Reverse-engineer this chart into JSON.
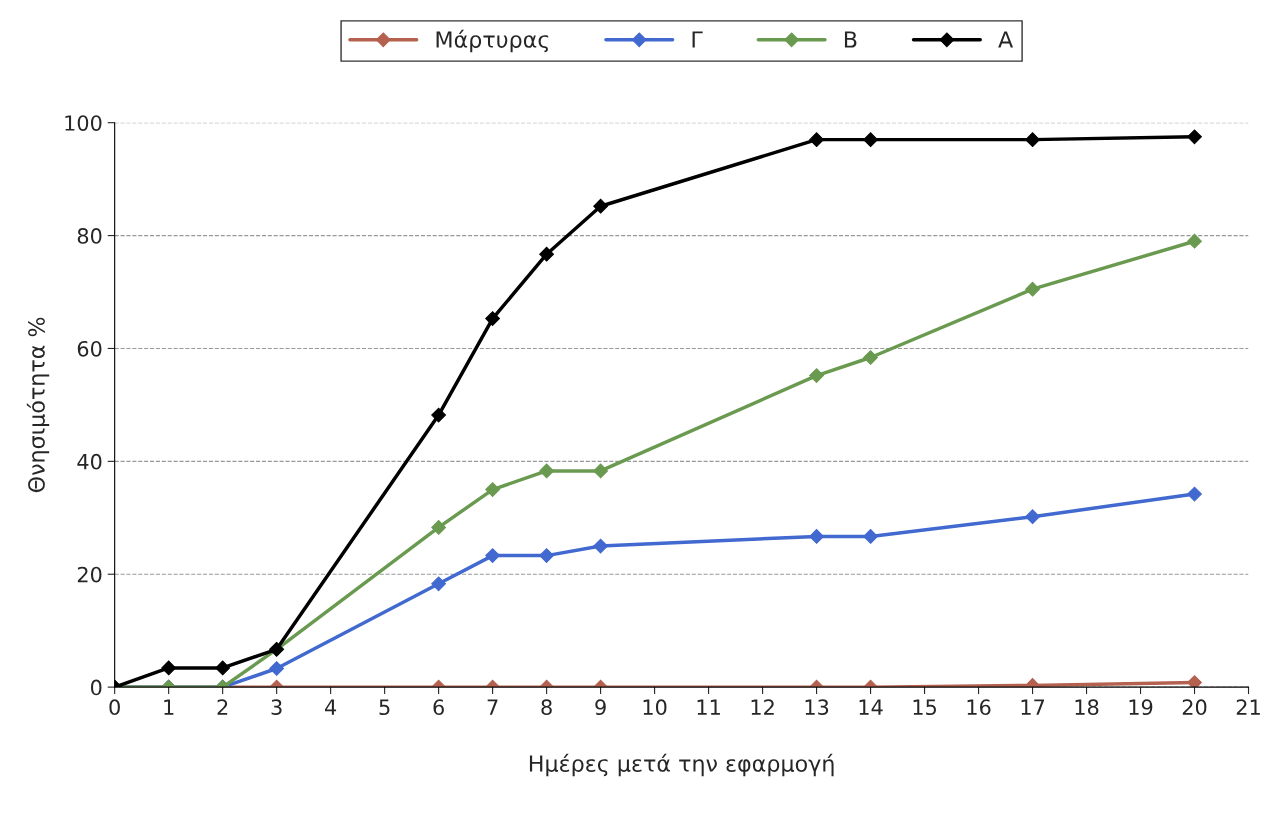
{
  "chart_data": {
    "type": "line",
    "xlabel": "Ημέρες μετά την εφαρμογή",
    "ylabel": "Θνησιμότητα %",
    "x": [
      0,
      1,
      2,
      3,
      6,
      7,
      8,
      9,
      13,
      14,
      17,
      20
    ],
    "series": [
      {
        "name": "Μάρτυρας",
        "color": "#b5614f",
        "values": [
          0,
          0,
          0,
          0,
          0,
          0,
          0,
          0,
          0,
          0,
          0.3,
          0.8
        ]
      },
      {
        "name": "Γ",
        "color": "#4169d0",
        "values": [
          0,
          0,
          0,
          3.3,
          18.3,
          23.3,
          23.3,
          25,
          26.7,
          26.7,
          30.2,
          34.2
        ]
      },
      {
        "name": "Β",
        "color": "#6a9a50",
        "values": [
          0,
          0,
          0,
          6.7,
          28.3,
          35,
          38.3,
          38.3,
          55.2,
          58.4,
          70.5,
          79
        ]
      },
      {
        "name": "Α",
        "color": "#000000",
        "values": [
          0,
          3.4,
          3.4,
          6.7,
          48.2,
          65.3,
          76.7,
          85.2,
          97,
          97,
          97,
          97.5
        ]
      }
    ],
    "xlim": [
      0,
      21
    ],
    "xticks": [
      0,
      1,
      2,
      3,
      4,
      5,
      6,
      7,
      8,
      9,
      10,
      11,
      12,
      13,
      14,
      15,
      16,
      17,
      18,
      19,
      20,
      21
    ],
    "ylim": [
      0,
      100
    ],
    "yticks": [
      0,
      20,
      40,
      60,
      80,
      100
    ],
    "grid": "y",
    "legend": "top",
    "marker": "diamond",
    "line_style": "solid"
  }
}
